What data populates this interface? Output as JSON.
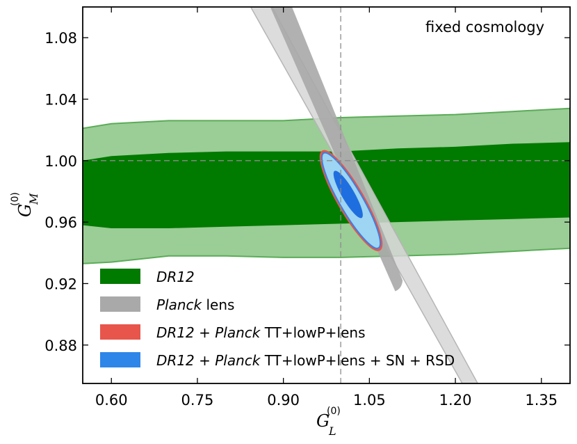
{
  "chart_data": {
    "type": "contour",
    "xlabel": "G_L^(0)",
    "ylabel": "G_M^(0)",
    "xlabel_parts": {
      "base": "G",
      "sub": "L",
      "sup": "(0)"
    },
    "ylabel_parts": {
      "base": "G",
      "sub": "M",
      "sup": "(0)"
    },
    "xlim": [
      0.55,
      1.4
    ],
    "ylim": [
      0.855,
      1.1
    ],
    "xticks": [
      0.6,
      0.75,
      0.9,
      1.05,
      1.2,
      1.35
    ],
    "xtick_labels": [
      "0.60",
      "0.75",
      "0.90",
      "1.05",
      "1.20",
      "1.35"
    ],
    "yticks": [
      0.88,
      0.92,
      0.96,
      1.0,
      1.04,
      1.08
    ],
    "ytick_labels": [
      "0.88",
      "0.92",
      "0.96",
      "1.00",
      "1.04",
      "1.08"
    ],
    "reference_lines": {
      "x": 1.0,
      "y": 1.0
    },
    "annotation": "fixed cosmology",
    "colors": {
      "dr12_inner": "#017a00",
      "dr12_outer": "#9bcd96",
      "dr12_edge": "#5aac58",
      "planck_inner": "#a9a9a9",
      "planck_outer": "#d6d6d6",
      "planck_edge": "#b5b5b5",
      "combo_red": "#e8554b",
      "combo_blue_inner": "#1f6ee0",
      "combo_blue_outer": "#9dd5f2",
      "combo_blue_edge": "#3b7fe0",
      "refline": "#8c8c8c"
    },
    "series": [
      {
        "name": "DR12",
        "inner_upper": [
          [
            0.55,
            1.0
          ],
          [
            0.6,
            1.003
          ],
          [
            0.7,
            1.005
          ],
          [
            0.8,
            1.006
          ],
          [
            0.9,
            1.006
          ],
          [
            1.0,
            1.006
          ],
          [
            1.1,
            1.008
          ],
          [
            1.2,
            1.009
          ],
          [
            1.3,
            1.011
          ],
          [
            1.4,
            1.012
          ]
        ],
        "inner_lower": [
          [
            0.55,
            0.958
          ],
          [
            0.6,
            0.956
          ],
          [
            0.7,
            0.956
          ],
          [
            0.8,
            0.957
          ],
          [
            0.9,
            0.958
          ],
          [
            1.0,
            0.959
          ],
          [
            1.1,
            0.96
          ],
          [
            1.2,
            0.961
          ],
          [
            1.3,
            0.962
          ],
          [
            1.4,
            0.963
          ]
        ],
        "outer_upper": [
          [
            0.55,
            1.021
          ],
          [
            0.6,
            1.024
          ],
          [
            0.7,
            1.026
          ],
          [
            0.8,
            1.026
          ],
          [
            0.9,
            1.026
          ],
          [
            1.0,
            1.028
          ],
          [
            1.1,
            1.029
          ],
          [
            1.2,
            1.03
          ],
          [
            1.3,
            1.032
          ],
          [
            1.4,
            1.034
          ]
        ],
        "outer_lower": [
          [
            0.55,
            0.933
          ],
          [
            0.6,
            0.934
          ],
          [
            0.7,
            0.938
          ],
          [
            0.8,
            0.938
          ],
          [
            0.9,
            0.937
          ],
          [
            1.0,
            0.937
          ],
          [
            1.1,
            0.938
          ],
          [
            1.2,
            0.939
          ],
          [
            1.3,
            0.941
          ],
          [
            1.4,
            0.943
          ]
        ]
      },
      {
        "name": "Planck lens",
        "degeneracy_line": [
          [
            0.86,
            1.1
          ],
          [
            1.24,
            0.855
          ]
        ],
        "inner": [
          [
            0.877,
            1.1
          ],
          [
            0.915,
            1.1
          ],
          [
            1.108,
            0.922
          ],
          [
            1.095,
            0.915
          ]
        ],
        "outer": [
          [
            0.843,
            1.1
          ],
          [
            0.88,
            1.1
          ],
          [
            1.239,
            0.855
          ],
          [
            1.212,
            0.855
          ]
        ]
      },
      {
        "name": "DR12 + Planck TT+lowP+lens",
        "ellipse": {
          "cx": 1.018,
          "cy": 0.974,
          "semi_major": 0.061,
          "semi_minor": 0.0052,
          "slope": -1.28,
          "contour": "95%"
        }
      },
      {
        "name": "DR12 + Planck TT+lowP+lens + SN + RSD",
        "ellipse_outer": {
          "cx": 1.018,
          "cy": 0.974,
          "semi_major": 0.059,
          "semi_minor": 0.0048,
          "slope": -1.28,
          "contour": "95%"
        },
        "ellipse_inner": {
          "cx": 1.013,
          "cy": 0.978,
          "semi_major": 0.027,
          "semi_minor": 0.0024,
          "slope": -1.28,
          "contour": "68%"
        }
      }
    ],
    "legend": {
      "placement": "lower-left",
      "entries": [
        {
          "parts": [
            {
              "text": "DR12",
              "italic": true
            }
          ],
          "color": "#017a00"
        },
        {
          "parts": [
            {
              "text": "Planck",
              "italic": true
            },
            {
              "text": " lens",
              "italic": false
            }
          ],
          "color": "#a9a9a9"
        },
        {
          "parts": [
            {
              "text": "DR12",
              "italic": true
            },
            {
              "text": " + ",
              "italic": false
            },
            {
              "text": "Planck",
              "italic": true
            },
            {
              "text": " TT+lowP+lens",
              "italic": false
            }
          ],
          "color": "#e8554b"
        },
        {
          "parts": [
            {
              "text": "DR12",
              "italic": true
            },
            {
              "text": " + ",
              "italic": false
            },
            {
              "text": "Planck",
              "italic": true
            },
            {
              "text": " TT+lowP+lens + SN + RSD",
              "italic": false
            }
          ],
          "color": "#2e86e8"
        }
      ]
    }
  }
}
